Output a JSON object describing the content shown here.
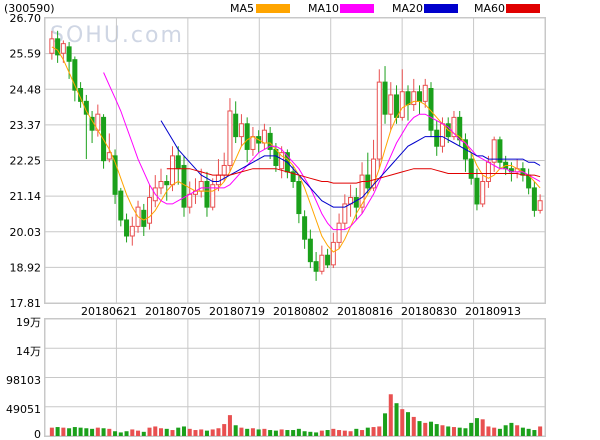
{
  "stock": {
    "code": "(300590)",
    "watermark": "SOHU.com"
  },
  "legend": [
    {
      "name": "MA5",
      "color": "#ffa500"
    },
    {
      "name": "MA10",
      "color": "#ff00ff"
    },
    {
      "name": "MA20",
      "color": "#0000cc"
    },
    {
      "name": "MA60",
      "color": "#e00000"
    }
  ],
  "colors": {
    "up": "#e85050",
    "down": "#1ba01b",
    "grid": "#c8c8c8"
  },
  "chart_data": [
    {
      "type": "candlestick",
      "title": "",
      "y_ticks": [
        "26.70",
        "25.59",
        "24.48",
        "23.37",
        "22.25",
        "21.14",
        "20.03",
        "18.92",
        "17.81"
      ],
      "ylim": [
        17.81,
        26.7
      ],
      "x_ticks": [
        "20180621",
        "20180705",
        "20180719",
        "20180802",
        "20180816",
        "20180830",
        "20180913"
      ],
      "candles": [
        [
          25.6,
          26.05,
          26.3,
          25.4
        ],
        [
          26.05,
          25.55,
          26.3,
          25.3
        ],
        [
          25.6,
          25.9,
          26.0,
          25.3
        ],
        [
          25.8,
          25.35,
          25.95,
          24.8
        ],
        [
          25.4,
          24.45,
          25.5,
          24.1
        ],
        [
          24.5,
          24.1,
          24.7,
          23.9
        ],
        [
          24.1,
          23.7,
          24.3,
          22.3
        ],
        [
          23.6,
          23.2,
          23.8,
          22.8
        ],
        [
          23.2,
          23.7,
          24.0,
          23.0
        ],
        [
          23.6,
          22.25,
          23.7,
          22.0
        ],
        [
          22.3,
          22.5,
          23.1,
          22.2
        ],
        [
          22.4,
          21.2,
          22.6,
          20.9
        ],
        [
          21.3,
          20.4,
          21.4,
          20.2
        ],
        [
          20.4,
          19.9,
          20.6,
          19.7
        ],
        [
          19.9,
          20.2,
          20.5,
          19.6
        ],
        [
          20.2,
          20.8,
          21.0,
          20.0
        ],
        [
          20.7,
          20.2,
          20.9,
          19.9
        ],
        [
          20.3,
          21.1,
          21.5,
          20.1
        ],
        [
          21.0,
          21.4,
          21.8,
          20.8
        ],
        [
          21.4,
          21.6,
          22.0,
          21.2
        ],
        [
          21.6,
          21.5,
          21.8,
          21.0
        ],
        [
          21.5,
          22.4,
          22.7,
          21.3
        ],
        [
          22.4,
          22.0,
          22.7,
          21.5
        ],
        [
          22.1,
          20.8,
          22.4,
          20.5
        ],
        [
          20.8,
          21.2,
          21.6,
          20.6
        ],
        [
          21.2,
          21.3,
          21.7,
          20.9
        ],
        [
          21.3,
          21.6,
          22.0,
          21.1
        ],
        [
          21.6,
          20.8,
          21.9,
          20.5
        ],
        [
          20.8,
          21.5,
          21.7,
          20.7
        ],
        [
          21.5,
          21.8,
          22.3,
          21.3
        ],
        [
          21.8,
          22.1,
          22.5,
          21.6
        ],
        [
          22.1,
          23.8,
          24.2,
          21.9
        ],
        [
          23.7,
          23.0,
          24.1,
          22.8
        ],
        [
          23.0,
          23.4,
          23.7,
          22.7
        ],
        [
          23.4,
          22.6,
          23.6,
          22.2
        ],
        [
          22.6,
          23.0,
          23.3,
          22.4
        ],
        [
          23.0,
          22.8,
          23.2,
          22.5
        ],
        [
          22.8,
          23.2,
          23.4,
          22.6
        ],
        [
          23.1,
          22.6,
          23.3,
          22.3
        ],
        [
          22.6,
          22.1,
          22.8,
          21.9
        ],
        [
          22.0,
          22.5,
          22.7,
          21.7
        ],
        [
          22.5,
          21.9,
          22.6,
          21.7
        ],
        [
          21.9,
          21.6,
          22.1,
          21.4
        ],
        [
          21.6,
          20.6,
          21.8,
          20.3
        ],
        [
          20.5,
          19.8,
          20.7,
          19.5
        ],
        [
          19.8,
          19.1,
          20.1,
          18.9
        ],
        [
          19.1,
          18.8,
          19.4,
          18.5
        ],
        [
          18.8,
          19.3,
          19.6,
          18.7
        ],
        [
          19.3,
          19.0,
          19.5,
          18.9
        ],
        [
          19.0,
          19.7,
          20.0,
          18.9
        ],
        [
          19.7,
          20.3,
          20.6,
          19.5
        ],
        [
          20.3,
          20.9,
          21.2,
          20.1
        ],
        [
          20.9,
          21.1,
          21.5,
          20.5
        ],
        [
          21.1,
          20.8,
          21.4,
          20.4
        ],
        [
          20.8,
          21.8,
          22.2,
          20.6
        ],
        [
          21.8,
          21.4,
          22.5,
          21.2
        ],
        [
          21.4,
          22.3,
          22.9,
          21.3
        ],
        [
          22.3,
          24.7,
          25.1,
          22.0
        ],
        [
          24.7,
          23.7,
          25.2,
          23.4
        ],
        [
          23.7,
          24.3,
          24.7,
          23.2
        ],
        [
          24.3,
          23.6,
          24.6,
          23.4
        ],
        [
          23.6,
          24.4,
          25.1,
          23.5
        ],
        [
          24.4,
          24.0,
          24.6,
          23.5
        ],
        [
          24.0,
          24.4,
          24.8,
          23.8
        ],
        [
          24.4,
          24.1,
          24.6,
          23.7
        ],
        [
          24.1,
          24.6,
          24.8,
          23.9
        ],
        [
          24.5,
          23.2,
          24.7,
          23.0
        ],
        [
          23.2,
          22.7,
          23.5,
          22.4
        ],
        [
          22.7,
          23.4,
          23.6,
          22.5
        ],
        [
          23.4,
          23.0,
          23.6,
          22.8
        ],
        [
          23.0,
          23.6,
          23.8,
          22.9
        ],
        [
          23.6,
          22.9,
          23.8,
          22.7
        ],
        [
          22.9,
          22.3,
          23.1,
          21.9
        ],
        [
          22.3,
          21.7,
          22.5,
          21.5
        ],
        [
          21.7,
          20.9,
          22.0,
          20.7
        ],
        [
          20.9,
          21.6,
          21.8,
          20.8
        ],
        [
          21.6,
          22.2,
          22.4,
          21.4
        ],
        [
          22.2,
          22.9,
          23.0,
          21.9
        ],
        [
          22.9,
          22.2,
          23.0,
          22.0
        ],
        [
          22.2,
          22.0,
          22.4,
          21.8
        ],
        [
          22.0,
          21.9,
          22.2,
          21.6
        ],
        [
          21.9,
          22.0,
          22.3,
          21.7
        ],
        [
          22.0,
          21.8,
          22.2,
          21.6
        ],
        [
          21.8,
          21.4,
          22.0,
          21.2
        ],
        [
          21.4,
          20.7,
          21.6,
          20.5
        ],
        [
          20.7,
          21.0,
          21.2,
          20.6
        ]
      ],
      "series": [
        {
          "name": "MA5",
          "values": [
            25.8,
            25.7,
            25.4,
            25.0,
            24.6,
            24.2,
            23.8,
            23.5,
            23.2,
            22.9,
            22.6,
            22.2,
            21.7,
            21.2,
            20.8,
            20.5,
            20.4,
            20.5,
            20.7,
            21.0,
            21.3,
            21.5,
            21.6,
            21.5,
            21.4,
            21.3,
            21.3,
            21.3,
            21.3,
            21.4,
            21.6,
            21.9,
            22.3,
            22.7,
            22.9,
            23.0,
            22.9,
            22.8,
            22.8,
            22.6,
            22.4,
            22.3,
            22.1,
            21.8,
            21.4,
            20.9,
            20.4,
            19.9,
            19.6,
            19.4,
            19.5,
            19.8,
            20.2,
            20.6,
            20.9,
            21.2,
            21.5,
            22.0,
            22.6,
            23.2,
            23.6,
            23.9,
            24.0,
            24.1,
            24.1,
            24.0,
            23.8,
            23.6,
            23.4,
            23.2,
            23.1,
            23.0,
            22.8,
            22.5,
            22.1,
            21.8,
            21.7,
            21.8,
            22.0,
            22.1,
            22.1,
            22.0,
            21.9,
            21.8,
            21.6,
            21.4
          ]
        },
        {
          "name": "MA10",
          "values": [
            null,
            null,
            null,
            null,
            null,
            null,
            null,
            null,
            null,
            25.0,
            24.6,
            24.2,
            23.8,
            23.3,
            22.8,
            22.3,
            21.9,
            21.5,
            21.2,
            21.0,
            20.9,
            20.9,
            21.0,
            21.1,
            21.2,
            21.3,
            21.4,
            21.4,
            21.4,
            21.4,
            21.4,
            21.5,
            21.7,
            21.9,
            22.1,
            22.3,
            22.5,
            22.6,
            22.7,
            22.7,
            22.6,
            22.4,
            22.2,
            22.0,
            21.7,
            21.4,
            21.0,
            20.6,
            20.3,
            20.1,
            20.1,
            20.1,
            20.2,
            20.4,
            20.6,
            20.9,
            21.2,
            21.6,
            22.0,
            22.4,
            22.8,
            23.1,
            23.4,
            23.6,
            23.7,
            23.7,
            23.6,
            23.5,
            23.4,
            23.3,
            23.1,
            22.9,
            22.8,
            22.6,
            22.4,
            22.3,
            22.2,
            22.1,
            22.0,
            22.0,
            21.9,
            21.9,
            21.9,
            21.8,
            21.7,
            21.6
          ]
        },
        {
          "name": "MA20",
          "values": [
            null,
            null,
            null,
            null,
            null,
            null,
            null,
            null,
            null,
            null,
            null,
            null,
            null,
            null,
            null,
            null,
            null,
            null,
            null,
            23.5,
            23.2,
            22.9,
            22.6,
            22.4,
            22.2,
            22.0,
            21.8,
            21.7,
            21.6,
            21.6,
            21.7,
            21.8,
            21.9,
            22.0,
            22.1,
            22.2,
            22.3,
            22.4,
            22.4,
            22.4,
            22.3,
            22.2,
            22.0,
            21.8,
            21.6,
            21.4,
            21.2,
            21.0,
            20.9,
            20.8,
            20.8,
            20.8,
            20.9,
            21.0,
            21.1,
            21.3,
            21.5,
            21.7,
            21.9,
            22.1,
            22.3,
            22.5,
            22.7,
            22.8,
            22.9,
            23.0,
            23.0,
            23.0,
            23.0,
            22.9,
            22.8,
            22.7,
            22.6,
            22.5,
            22.4,
            22.4,
            22.3,
            22.3,
            22.3,
            22.3,
            22.3,
            22.3,
            22.3,
            22.2,
            22.2,
            22.1
          ]
        },
        {
          "name": "MA60",
          "values": [
            null,
            null,
            null,
            null,
            null,
            null,
            null,
            null,
            null,
            null,
            null,
            null,
            null,
            null,
            null,
            null,
            null,
            null,
            null,
            null,
            22.0,
            22.0,
            22.0,
            22.0,
            22.0,
            21.95,
            21.9,
            21.85,
            21.8,
            21.8,
            21.8,
            21.8,
            21.85,
            21.9,
            21.95,
            22.0,
            22.0,
            22.0,
            22.0,
            22.0,
            21.95,
            21.9,
            21.85,
            21.8,
            21.75,
            21.7,
            21.65,
            21.6,
            21.6,
            21.55,
            21.55,
            21.55,
            21.55,
            21.55,
            21.6,
            21.6,
            21.65,
            21.7,
            21.75,
            21.8,
            21.85,
            21.9,
            21.95,
            22.0,
            22.0,
            22.0,
            22.0,
            21.95,
            21.9,
            21.85,
            21.85,
            21.85,
            21.85,
            21.85,
            21.85,
            21.85,
            21.85,
            21.85,
            21.85,
            21.85,
            21.85,
            21.85,
            21.8,
            21.8,
            21.8,
            21.75
          ]
        }
      ]
    },
    {
      "type": "bar",
      "title": "",
      "y_ticks": [
        "19万",
        "14万",
        "98103",
        "49051",
        "0"
      ],
      "ylim": [
        0,
        196206
      ],
      "values": [
        14000,
        15000,
        14000,
        13000,
        15000,
        14000,
        13000,
        12000,
        14000,
        13000,
        12000,
        8000,
        6000,
        8000,
        11000,
        9000,
        7000,
        14000,
        16000,
        13000,
        12000,
        10000,
        14000,
        16000,
        12000,
        10000,
        11000,
        9000,
        11000,
        13000,
        20000,
        35000,
        18000,
        14000,
        12000,
        13000,
        11000,
        12000,
        10000,
        9000,
        11000,
        10000,
        10000,
        12000,
        8000,
        7000,
        6000,
        9000,
        10000,
        12000,
        10000,
        9000,
        8000,
        12000,
        10000,
        14000,
        15000,
        16000,
        38000,
        70000,
        55000,
        45000,
        40000,
        32000,
        25000,
        22000,
        24000,
        20000,
        18000,
        16000,
        15000,
        14000,
        13000,
        22000,
        30000,
        28000,
        16000,
        14000,
        12000,
        18000,
        22000,
        18000,
        14000,
        12000,
        10000,
        16000
      ]
    }
  ]
}
